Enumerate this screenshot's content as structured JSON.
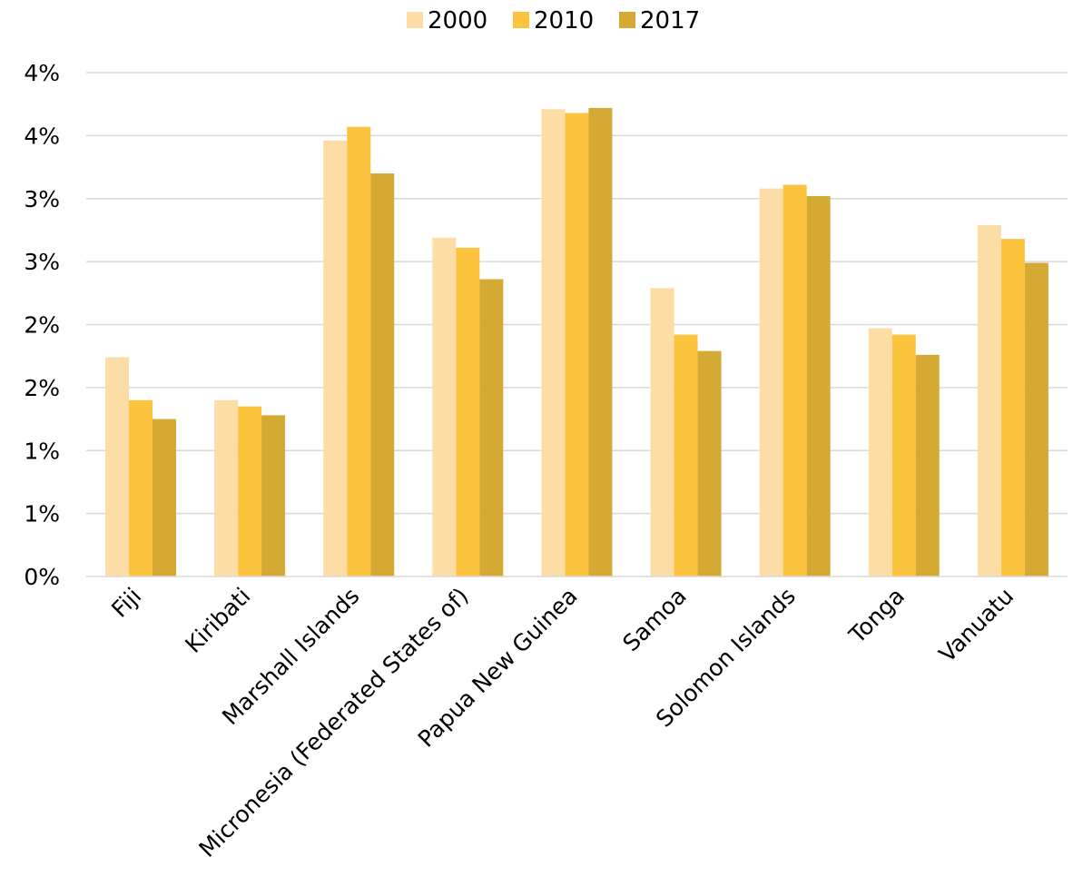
{
  "chart_data": {
    "type": "bar",
    "title": "",
    "xlabel": "",
    "ylabel": "",
    "categories": [
      "Fiji",
      "Kiribati",
      "Marshall Islands",
      "Micronesia (Federated States of)",
      "Papua New Guinea",
      "Samoa",
      "Solomon Islands",
      "Tonga",
      "Vanuatu"
    ],
    "series": [
      {
        "name": "2000",
        "color": "#fddda6",
        "values": [
          1.74,
          1.4,
          3.46,
          2.69,
          3.71,
          2.29,
          3.08,
          1.97,
          2.79
        ]
      },
      {
        "name": "2010",
        "color": "#fcc43e",
        "values": [
          1.4,
          1.35,
          3.57,
          2.61,
          3.68,
          1.92,
          3.11,
          1.92,
          2.68
        ]
      },
      {
        "name": "2017",
        "color": "#d4a934",
        "values": [
          1.25,
          1.28,
          3.2,
          2.36,
          3.72,
          1.79,
          3.02,
          1.76,
          2.49
        ]
      }
    ],
    "ylim": [
      0,
      4.0
    ],
    "yticks": [
      0,
      0.5,
      1.0,
      1.5,
      2.0,
      2.5,
      3.0,
      3.5,
      4.0
    ],
    "ytick_labels": [
      "0%",
      "1%",
      "1%",
      "2%",
      "2%",
      "3%",
      "3%",
      "4%",
      "4%"
    ],
    "grid": true,
    "legend_position": "top-center"
  }
}
